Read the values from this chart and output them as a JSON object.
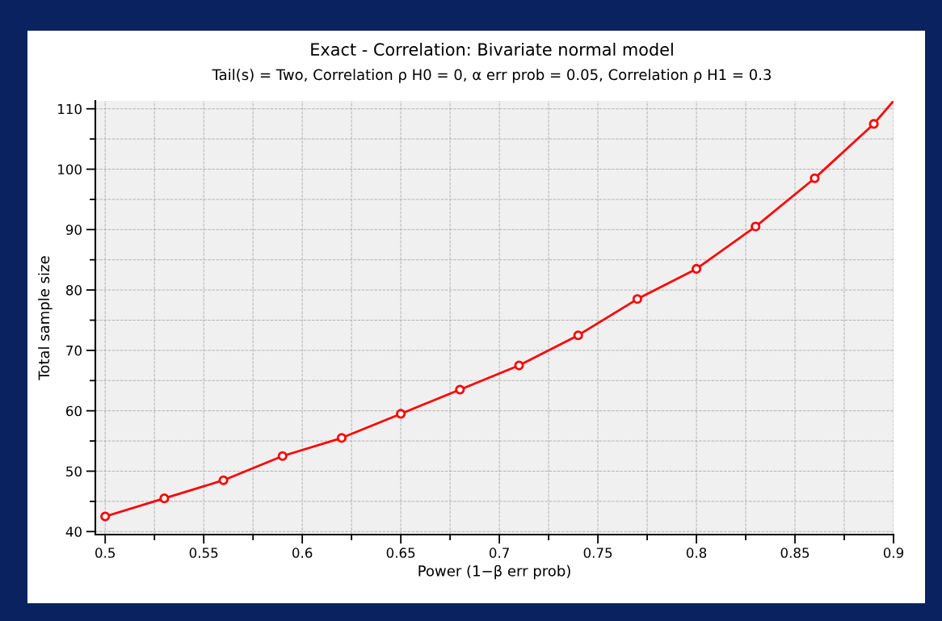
{
  "chart_data": {
    "type": "line",
    "title": "Exact - Correlation: Bivariate normal model",
    "subtitle": "Tail(s) = Two, Correlation ρ H0 = 0, α err prob = 0.05, Correlation ρ H1 = 0.3",
    "xlabel": "Power (1−β err prob)",
    "ylabel": "Total sample size",
    "series": [
      {
        "color": "#ff0000",
        "marker": "none",
        "x": [
          0.5,
          0.53,
          0.56,
          0.59,
          0.62,
          0.65,
          0.68,
          0.71,
          0.74,
          0.77,
          0.8,
          0.83,
          0.86,
          0.89,
          0.9
        ],
        "values": [
          42.5,
          45.5,
          48.5,
          52.5,
          55.5,
          59.5,
          63.5,
          67.5,
          72.5,
          78.5,
          83.5,
          90.5,
          98.5,
          107.5,
          111.3
        ]
      },
      {
        "type": "scatter",
        "color": "#ff0000",
        "marker": "circle",
        "x": [
          0.5,
          0.53,
          0.56,
          0.59,
          0.62,
          0.65,
          0.68,
          0.71,
          0.74,
          0.77,
          0.8,
          0.83,
          0.86,
          0.89
        ],
        "values": [
          42.5,
          45.5,
          48.5,
          52.5,
          55.5,
          59.5,
          63.5,
          67.5,
          72.5,
          78.5,
          83.5,
          90.5,
          98.5,
          107.5
        ]
      }
    ],
    "xlim": [
      0.495,
      0.9
    ],
    "xticks": [
      0.5,
      0.55,
      0.6,
      0.65,
      0.7,
      0.75,
      0.8,
      0.85,
      0.9
    ],
    "ylim": [
      39.5,
      111.3
    ],
    "yticks": [
      40,
      50,
      60,
      70,
      80,
      90,
      100,
      110
    ],
    "grid": true
  }
}
